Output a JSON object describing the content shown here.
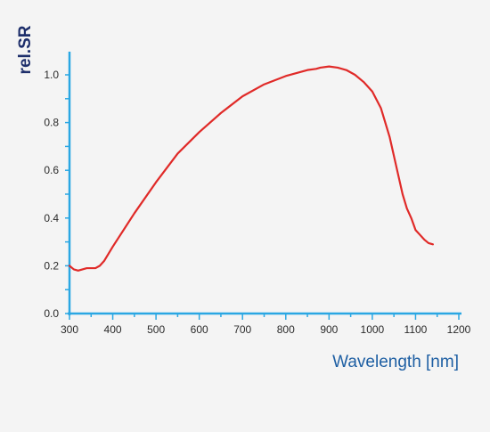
{
  "colors": {
    "background": "#f4f4f4",
    "axis": "#2aa7e3",
    "curve": "#e02a28",
    "ylabel": "#1e2f6b",
    "xlabel": "#1e5fa3",
    "ticks": "#2b2b2b"
  },
  "chart_data": {
    "type": "line",
    "title": "",
    "xlabel": "Wavelength [nm]",
    "ylabel": "rel.SR",
    "xlim": [
      300,
      1200
    ],
    "ylim": [
      0.0,
      1.0
    ],
    "grid": false,
    "x_ticks": [
      300,
      400,
      500,
      600,
      700,
      800,
      900,
      1000,
      1100,
      1200
    ],
    "y_ticks": [
      "0.0",
      "0.2",
      "0.4",
      "0.6",
      "0.8",
      "1.0"
    ],
    "series": [
      {
        "x": [
          300,
          310,
          320,
          330,
          340,
          350,
          360,
          370,
          380,
          400,
          450,
          500,
          550,
          600,
          650,
          700,
          750,
          800,
          850,
          870,
          880,
          900,
          920,
          940,
          960,
          980,
          1000,
          1020,
          1040,
          1060,
          1070,
          1080,
          1090,
          1100,
          1110,
          1120,
          1130,
          1140
        ],
        "y": [
          0.2,
          0.185,
          0.18,
          0.185,
          0.19,
          0.19,
          0.19,
          0.2,
          0.22,
          0.28,
          0.42,
          0.55,
          0.67,
          0.76,
          0.84,
          0.91,
          0.96,
          0.995,
          1.02,
          1.025,
          1.03,
          1.035,
          1.03,
          1.02,
          1.0,
          0.97,
          0.93,
          0.86,
          0.74,
          0.58,
          0.5,
          0.44,
          0.4,
          0.35,
          0.33,
          0.31,
          0.295,
          0.29
        ]
      }
    ]
  }
}
